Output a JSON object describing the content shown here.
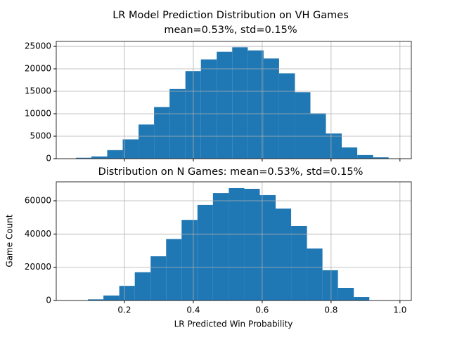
{
  "chart_data": [
    {
      "type": "histogram",
      "title": "LR Model Prediction Distribution on VH Games",
      "subtitle": "mean=0.53%, std=0.15%",
      "bins": [
        0.059,
        0.104,
        0.15,
        0.195,
        0.241,
        0.286,
        0.331,
        0.377,
        0.422,
        0.468,
        0.513,
        0.558,
        0.604,
        0.649,
        0.695,
        0.74,
        0.785,
        0.831,
        0.876,
        0.922,
        0.967
      ],
      "values": [
        200,
        500,
        1900,
        4300,
        7600,
        11500,
        15500,
        19500,
        22100,
        23800,
        24800,
        24100,
        22300,
        19000,
        14800,
        10100,
        5600,
        2500,
        800,
        300
      ],
      "color": "#1f77b4",
      "xlim": [
        0.002,
        1.033
      ],
      "xticks": [
        0.2,
        0.4,
        0.6,
        0.8,
        1
      ],
      "ylim": [
        0,
        26100
      ],
      "yticks": [
        0,
        5000,
        10000,
        15000,
        20000,
        25000
      ],
      "grid": true
    },
    {
      "type": "histogram",
      "title": "Distribution on N Games: mean=0.53%, std=0.15%",
      "xlabel": "LR Predicted Win Probability",
      "ylabel": "Game Count",
      "bins": [
        0.094,
        0.139,
        0.185,
        0.23,
        0.276,
        0.321,
        0.366,
        0.412,
        0.457,
        0.503,
        0.548,
        0.593,
        0.639,
        0.684,
        0.73,
        0.775,
        0.82,
        0.866,
        0.911
      ],
      "values": [
        700,
        3000,
        8800,
        17000,
        26600,
        37000,
        48500,
        57500,
        64600,
        67600,
        67200,
        63400,
        55300,
        44800,
        31300,
        18200,
        7600,
        2100
      ],
      "color": "#1f77b4",
      "xlim": [
        0.002,
        1.033
      ],
      "xticks": [
        0.2,
        0.4,
        0.6,
        0.8,
        {
          "value": 1,
          "label": "1.0"
        }
      ],
      "ylim": [
        0,
        71400
      ],
      "yticks": [
        0,
        20000,
        40000,
        60000
      ],
      "grid": true
    }
  ]
}
